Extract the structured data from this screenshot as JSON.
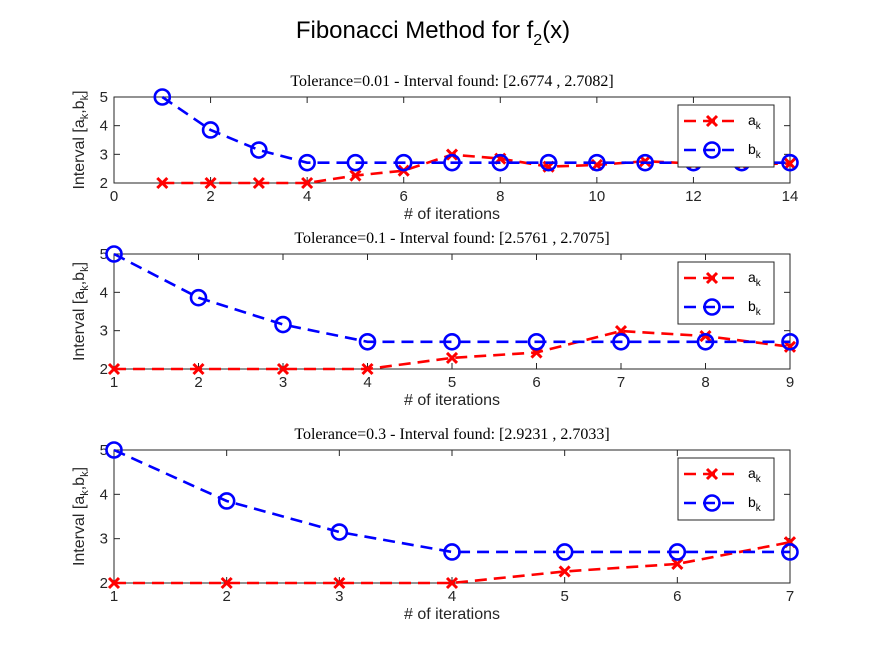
{
  "figure_title": "Fibonacci Method for f",
  "figure_title_sub": "2",
  "figure_title_tail": "(x)",
  "colors": {
    "a": "#ff0000",
    "b": "#0000ff"
  },
  "chart_data": [
    {
      "type": "line",
      "title": "Tolerance=0.01 - Interval found: [2.6774 , 2.7082]",
      "xlabel": "# of iterations",
      "ylabel": "Interval [a_k,b_k]",
      "xlim": [
        0,
        14
      ],
      "ylim": [
        2,
        5
      ],
      "xticks": [
        0,
        2,
        4,
        6,
        8,
        10,
        12,
        14
      ],
      "yticks": [
        2,
        3,
        4,
        5
      ],
      "grid": false,
      "legend": "top-right",
      "x": [
        1,
        2,
        3,
        4,
        5,
        6,
        7,
        8,
        9,
        10,
        11,
        12,
        13,
        14
      ],
      "series": [
        {
          "name": "a_k",
          "marker": "x",
          "values": [
            2,
            2,
            2,
            2,
            2.26,
            2.43,
            2.99,
            2.85,
            2.57,
            2.63,
            2.76,
            2.68,
            2.66,
            2.68
          ]
        },
        {
          "name": "b_k",
          "marker": "o",
          "values": [
            5,
            3.85,
            3.15,
            2.71,
            2.71,
            2.71,
            2.71,
            2.71,
            2.71,
            2.71,
            2.71,
            2.71,
            2.71,
            2.71
          ]
        }
      ]
    },
    {
      "type": "line",
      "title": "Tolerance=0.1 - Interval found: [2.5761 , 2.7075]",
      "xlabel": "# of iterations",
      "ylabel": "Interval [a_k,b_k]",
      "xlim": [
        1,
        9
      ],
      "ylim": [
        2,
        5
      ],
      "xticks": [
        1,
        2,
        3,
        4,
        5,
        6,
        7,
        8,
        9
      ],
      "yticks": [
        2,
        3,
        4,
        5
      ],
      "grid": false,
      "legend": "top-right",
      "x": [
        1,
        2,
        3,
        4,
        5,
        6,
        7,
        8,
        9
      ],
      "series": [
        {
          "name": "a_k",
          "marker": "x",
          "values": [
            2,
            2,
            2,
            2,
            2.29,
            2.43,
            2.99,
            2.86,
            2.58
          ]
        },
        {
          "name": "b_k",
          "marker": "o",
          "values": [
            5,
            3.86,
            3.16,
            2.71,
            2.71,
            2.71,
            2.71,
            2.71,
            2.71
          ]
        }
      ]
    },
    {
      "type": "line",
      "title": "Tolerance=0.3 - Interval found: [2.9231 , 2.7033]",
      "xlabel": "# of iterations",
      "ylabel": "Interval [a_k,b_k]",
      "xlim": [
        1,
        7
      ],
      "ylim": [
        2,
        5
      ],
      "xticks": [
        1,
        2,
        3,
        4,
        5,
        6,
        7
      ],
      "yticks": [
        2,
        3,
        4,
        5
      ],
      "grid": false,
      "legend": "top-right",
      "x": [
        1,
        2,
        3,
        4,
        5,
        6,
        7
      ],
      "series": [
        {
          "name": "a_k",
          "marker": "x",
          "values": [
            2,
            2,
            2,
            2,
            2.26,
            2.43,
            2.92
          ]
        },
        {
          "name": "b_k",
          "marker": "o",
          "values": [
            5,
            3.85,
            3.15,
            2.7,
            2.7,
            2.7,
            2.7
          ]
        }
      ]
    }
  ]
}
